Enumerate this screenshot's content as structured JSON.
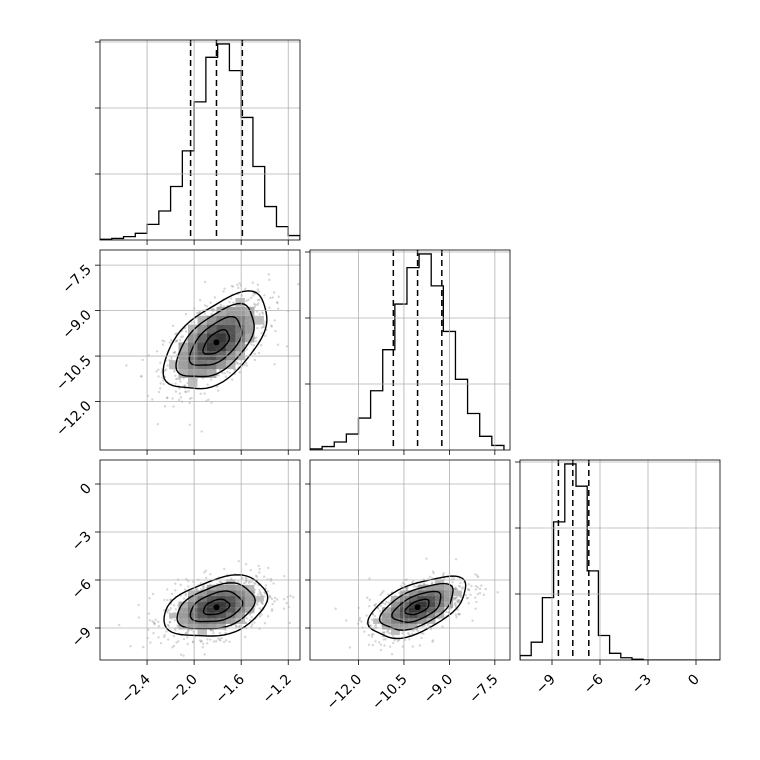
{
  "chart_data": {
    "type": "corner",
    "n_params": 3,
    "grid": true,
    "params": [
      {
        "range": [
          -2.8,
          -1.1
        ],
        "ticks": [
          -2.4,
          -2.0,
          -1.6,
          -1.2
        ],
        "tick_labels": [
          "−2.4",
          "−2.0",
          "−1.6",
          "−1.2"
        ],
        "quantiles": [
          -2.03,
          -1.81,
          -1.59
        ]
      },
      {
        "range": [
          -13.6,
          -7.0
        ],
        "ticks": [
          -12.0,
          -10.5,
          -9.0,
          -7.5
        ],
        "tick_labels": [
          "−12.0",
          "−10.5",
          "−9.0",
          "−7.5"
        ],
        "quantiles": [
          -10.85,
          -10.05,
          -9.25
        ]
      },
      {
        "range": [
          -11.0,
          1.5
        ],
        "ticks": [
          -9,
          -6,
          -3,
          0
        ],
        "tick_labels": [
          "−9",
          "−6",
          "−3",
          "0"
        ],
        "quantiles": [
          -8.6,
          -7.7,
          -6.7
        ]
      }
    ],
    "histograms": [
      {
        "param": 0,
        "bins": [
          -2.8,
          -2.7,
          -2.6,
          -2.5,
          -2.4,
          -2.3,
          -2.2,
          -2.1,
          -2.0,
          -1.9,
          -1.8,
          -1.7,
          -1.6,
          -1.5,
          -1.4,
          -1.3,
          -1.2,
          -1.1
        ],
        "counts": [
          0.3,
          0.7,
          1.5,
          3,
          7,
          13,
          24,
          40,
          62,
          82,
          88,
          76,
          55,
          33,
          15,
          6,
          2
        ]
      },
      {
        "param": 1,
        "bins": [
          -13.6,
          -13.2,
          -12.8,
          -12.4,
          -12.0,
          -11.6,
          -11.2,
          -10.8,
          -10.4,
          -10.0,
          -9.6,
          -9.2,
          -8.8,
          -8.4,
          -8.0,
          -7.6,
          -7.2
        ],
        "counts": [
          0.5,
          1.5,
          3.5,
          7,
          14,
          26,
          44,
          64,
          80,
          86,
          72,
          52,
          31,
          16,
          6,
          2
        ]
      },
      {
        "param": 2,
        "bins": [
          -11,
          -10.3,
          -9.6,
          -8.9,
          -8.2,
          -7.5,
          -6.8,
          -6.1,
          -5.4,
          -4.7,
          -4.0,
          -3.3,
          -2.6,
          -1.9,
          -1.2,
          -0.5,
          0.2,
          0.9,
          1.5
        ],
        "counts": [
          2,
          8,
          28,
          62,
          88,
          78,
          40,
          11,
          3,
          1,
          0.3,
          0,
          0,
          0,
          0,
          0,
          0,
          0
        ]
      }
    ],
    "pairs": [
      {
        "x_param": 0,
        "y_param": 1,
        "mean": [
          -1.81,
          -10.05
        ],
        "std": [
          0.22,
          0.8
        ],
        "rho": 0.55,
        "contour_levels_sigma": [
          0.5,
          1.0,
          1.5,
          2.0
        ]
      },
      {
        "x_param": 0,
        "y_param": 2,
        "mean": [
          -1.81,
          -7.7
        ],
        "std": [
          0.22,
          0.95
        ],
        "rho": 0.35,
        "contour_levels_sigma": [
          0.5,
          1.0,
          1.5,
          2.0
        ]
      },
      {
        "x_param": 1,
        "y_param": 2,
        "mean": [
          -10.05,
          -7.7
        ],
        "std": [
          0.8,
          0.95
        ],
        "rho": 0.55,
        "contour_levels_sigma": [
          0.5,
          1.0,
          1.5,
          2.0
        ]
      }
    ]
  }
}
